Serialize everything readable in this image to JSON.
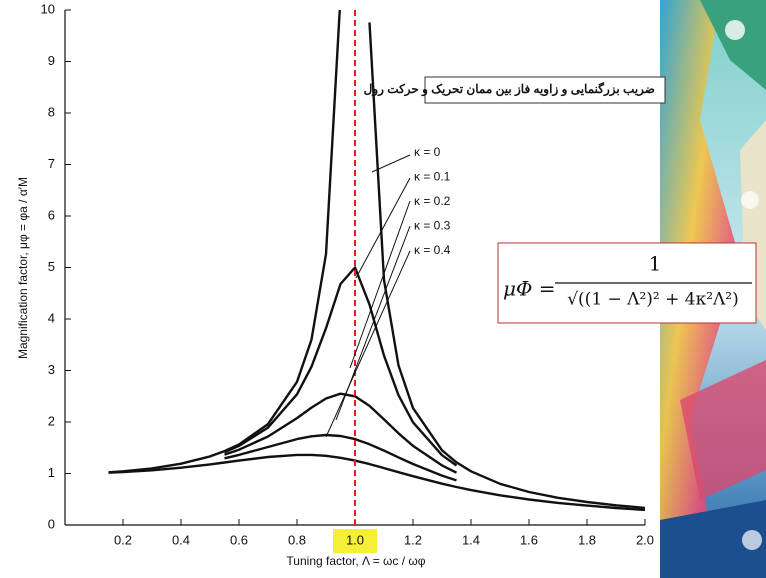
{
  "chart_data": {
    "type": "line",
    "title": "ضریب بزرگنمایی و زاویه فاز بین ممان تحریک و حرکت رول",
    "y_label": "Magnification factor, μφ = φa / α′M",
    "x_label": "Tuning factor, Λ = ωc / ωφ",
    "formula": {
      "lhs": "μΦ =",
      "numerator": "1",
      "denominator": "√((1 − Λ²)² + 4κ²Λ²)"
    },
    "x": [
      0.15,
      0.2,
      0.3,
      0.4,
      0.5,
      0.55,
      0.6,
      0.7,
      0.8,
      0.85,
      0.9,
      0.95,
      1.0,
      1.05,
      1.1,
      1.15,
      1.2,
      1.3,
      1.35,
      1.4,
      1.5,
      1.6,
      1.7,
      1.8,
      1.9,
      2.0
    ],
    "series": [
      {
        "name": "κ = 0",
        "color": "#111111",
        "values": [
          1.023,
          1.042,
          1.099,
          1.19,
          1.333,
          1.434,
          1.563,
          1.96,
          2.78,
          3.6,
          5.26,
          10.26,
          null,
          9.76,
          4.76,
          3.1,
          2.27,
          1.45,
          1.216,
          1.042,
          0.8,
          0.641,
          0.529,
          0.446,
          0.383,
          0.333
        ]
      },
      {
        "name": "κ = 0.1",
        "color": "#111111",
        "values": [
          null,
          null,
          null,
          null,
          null,
          1.416,
          1.536,
          1.891,
          2.538,
          3.073,
          3.821,
          4.68,
          5.0,
          4.28,
          3.29,
          2.52,
          1.995,
          1.356,
          1.155,
          null,
          null,
          null,
          null,
          null,
          null,
          null
        ]
      },
      {
        "name": "κ = 0.2",
        "color": "#111111",
        "values": [
          null,
          null,
          null,
          null,
          null,
          1.367,
          1.463,
          1.719,
          2.076,
          2.279,
          2.456,
          2.549,
          2.5,
          2.313,
          2.051,
          1.78,
          1.536,
          1.157,
          1.016,
          null,
          null,
          null,
          null,
          null,
          null,
          null
        ]
      },
      {
        "name": "κ = 0.3",
        "color": "#111111",
        "values": [
          null,
          null,
          null,
          null,
          null,
          1.296,
          1.362,
          1.514,
          1.667,
          1.722,
          1.747,
          1.729,
          1.667,
          1.567,
          1.444,
          1.313,
          1.185,
          0.96,
          0.866,
          null,
          null,
          null,
          null,
          null,
          null,
          null
        ]
      },
      {
        "name": "κ = 0.4",
        "color": "#111111",
        "values": [
          1.015,
          1.028,
          1.063,
          1.112,
          1.176,
          1.213,
          1.25,
          1.32,
          1.362,
          1.362,
          1.343,
          1.305,
          1.25,
          1.182,
          1.105,
          1.026,
          0.947,
          0.801,
          0.737,
          0.678,
          0.577,
          0.496,
          0.429,
          0.376,
          0.331,
          0.294
        ]
      }
    ],
    "xlim": [
      0,
      2.0
    ],
    "ylim": [
      0,
      10
    ],
    "xticks": [
      0.2,
      0.4,
      0.6,
      0.8,
      {
        "value": 1.0,
        "label": "1.0"
      },
      1.2,
      1.4,
      1.6,
      1.8,
      {
        "value": 2.0,
        "label": "2.0"
      }
    ],
    "yticks": [
      0,
      1,
      2,
      3,
      4,
      5,
      6,
      7,
      8,
      9,
      10
    ],
    "reference_line": {
      "x": 1.0,
      "color": "#e02020"
    },
    "highlight_color": "#f5ef3a"
  }
}
